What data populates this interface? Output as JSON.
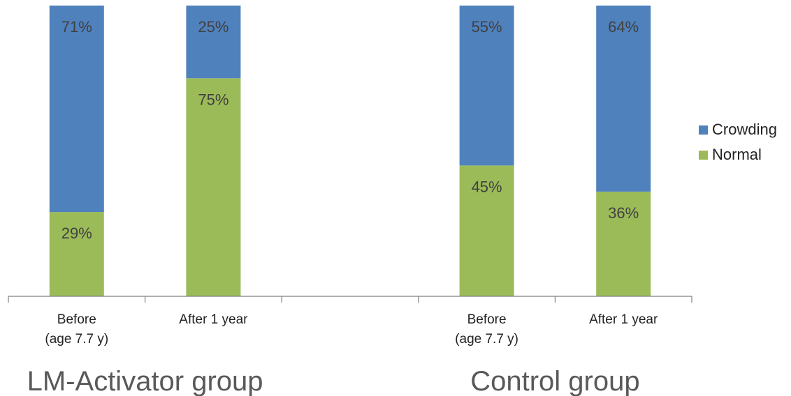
{
  "chart_data": {
    "type": "bar",
    "stacked": true,
    "percent": true,
    "categories": [
      "Before\n(age 7.7 y)",
      "After 1 year",
      "",
      "Before\n(age 7.7 y)",
      "After 1 year"
    ],
    "groups": [
      "LM-Activator group",
      "Control group"
    ],
    "series": [
      {
        "name": "Normal",
        "values": [
          29,
          75,
          null,
          45,
          36
        ],
        "labels": [
          "29%",
          "75%",
          "",
          "45%",
          "36%"
        ],
        "color": "#9BBB59"
      },
      {
        "name": "Crowding",
        "values": [
          71,
          25,
          null,
          55,
          64
        ],
        "labels": [
          "71%",
          "25%",
          "",
          "55%",
          "64%"
        ],
        "color": "#4F81BD"
      }
    ],
    "ylim": [
      0,
      100
    ],
    "grid": false,
    "legend_position": "right",
    "label_color": "#404040",
    "axis_color": "#808080"
  }
}
